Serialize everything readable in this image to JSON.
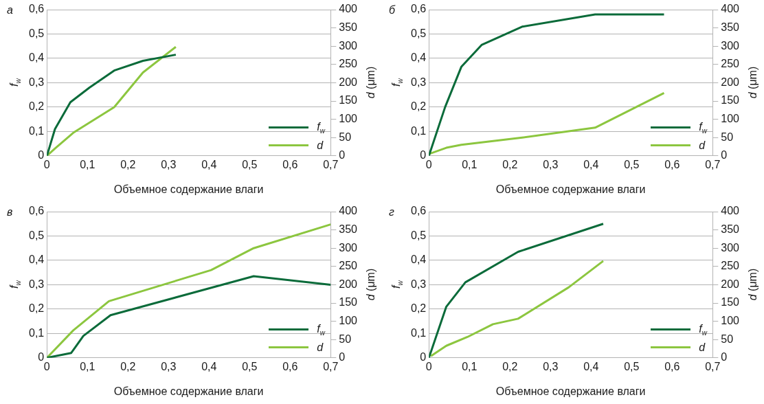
{
  "chart_data": [
    {
      "type": "line",
      "title": "а",
      "xlabel": "Объемное содержание влаги",
      "ylabel": "f$_{w}$",
      "y2label": "d (μm)",
      "grid": "y",
      "legend": "bottom right",
      "xlim": [
        0,
        0.7
      ],
      "xticks": [
        {
          "value": 0,
          "label": "0"
        },
        {
          "value": 0.1,
          "label": "0,1"
        },
        {
          "value": 0.2,
          "label": "0,2"
        },
        {
          "value": 0.3,
          "label": "0,3"
        },
        {
          "value": 0.4,
          "label": "0,4"
        },
        {
          "value": 0.5,
          "label": "0,5"
        },
        {
          "value": 0.6,
          "label": "0,6"
        },
        {
          "value": 0.7,
          "label": "0,7"
        }
      ],
      "ylim": [
        0,
        0.6
      ],
      "yticks": [
        {
          "value": 0,
          "label": "0"
        },
        {
          "value": 0.1,
          "label": "0,1"
        },
        {
          "value": 0.2,
          "label": "0,2"
        },
        {
          "value": 0.3,
          "label": "0,3"
        },
        {
          "value": 0.4,
          "label": "0,4"
        },
        {
          "value": 0.5,
          "label": "0,5"
        },
        {
          "value": 0.6,
          "label": "0,6"
        }
      ],
      "y2lim": [
        0,
        400
      ],
      "y2ticks": [
        0,
        50,
        100,
        150,
        200,
        250,
        300,
        350,
        400
      ],
      "series": [
        {
          "name": "f$_{w}$",
          "color": "#0b6b3a",
          "x": [
            0,
            0.02,
            0.058,
            0.105,
            0.166,
            0.237,
            0.318
          ],
          "values": [
            0,
            0.11,
            0.22,
            0.28,
            0.35,
            0.39,
            0.415
          ]
        },
        {
          "name": "d",
          "color": "#8cc63f",
          "axis": "y2",
          "x": [
            0,
            0.02,
            0.065,
            0.166,
            0.237,
            0.318
          ],
          "values": [
            0,
            20,
            63,
            133,
            228,
            298
          ]
        }
      ]
    },
    {
      "type": "line",
      "title": "б",
      "xlabel": "Объемное содержание влаги",
      "ylabel": "f$_{w}$",
      "y2label": "d (μm)",
      "grid": "y",
      "legend": "bottom right",
      "xlim": [
        0,
        0.7
      ],
      "xticks": [
        {
          "value": 0,
          "label": "0"
        },
        {
          "value": 0.1,
          "label": "0,1"
        },
        {
          "value": 0.2,
          "label": "0,2"
        },
        {
          "value": 0.3,
          "label": "0,3"
        },
        {
          "value": 0.4,
          "label": "0,4"
        },
        {
          "value": 0.5,
          "label": "0,5"
        },
        {
          "value": 0.6,
          "label": "0,6"
        },
        {
          "value": 0.7,
          "label": "0,7"
        }
      ],
      "ylim": [
        0,
        0.6
      ],
      "yticks": [
        {
          "value": 0,
          "label": "0"
        },
        {
          "value": 0.1,
          "label": "0,1"
        },
        {
          "value": 0.2,
          "label": "0,2"
        },
        {
          "value": 0.3,
          "label": "0,3"
        },
        {
          "value": 0.4,
          "label": "0,4"
        },
        {
          "value": 0.5,
          "label": "0,5"
        },
        {
          "value": 0.6,
          "label": "0,6"
        }
      ],
      "y2lim": [
        0,
        400
      ],
      "y2ticks": [
        0,
        50,
        100,
        150,
        200,
        250,
        300,
        350,
        400
      ],
      "series": [
        {
          "name": "f$_{w}$",
          "color": "#0b6b3a",
          "x": [
            0,
            0.04,
            0.08,
            0.13,
            0.23,
            0.41,
            0.58
          ],
          "values": [
            0,
            0.2,
            0.365,
            0.455,
            0.53,
            0.58,
            0.58
          ]
        },
        {
          "name": "d",
          "color": "#8cc63f",
          "axis": "y2",
          "x": [
            0,
            0.043,
            0.08,
            0.23,
            0.41,
            0.58
          ],
          "values": [
            5,
            22,
            30,
            50,
            77,
            172
          ]
        }
      ]
    },
    {
      "type": "line",
      "title": "в",
      "xlabel": "Объемное содержание влаги",
      "ylabel": "f$_{w}$",
      "y2label": "d (μm)",
      "grid": "y",
      "legend": "bottom right",
      "xlim": [
        0,
        0.7
      ],
      "xticks": [
        {
          "value": 0,
          "label": "0"
        },
        {
          "value": 0.1,
          "label": "0,1"
        },
        {
          "value": 0.2,
          "label": "0,2"
        },
        {
          "value": 0.3,
          "label": "0,3"
        },
        {
          "value": 0.4,
          "label": "0,4"
        },
        {
          "value": 0.5,
          "label": "0,5"
        },
        {
          "value": 0.6,
          "label": "0,6"
        },
        {
          "value": 0.7,
          "label": "0,7"
        }
      ],
      "ylim": [
        0,
        0.6
      ],
      "yticks": [
        {
          "value": 0,
          "label": "0"
        },
        {
          "value": 0.1,
          "label": "0,1"
        },
        {
          "value": 0.2,
          "label": "0,2"
        },
        {
          "value": 0.3,
          "label": "0,3"
        },
        {
          "value": 0.4,
          "label": "0,4"
        },
        {
          "value": 0.5,
          "label": "0,5"
        },
        {
          "value": 0.6,
          "label": "0,6"
        }
      ],
      "y2lim": [
        0,
        400
      ],
      "y2ticks": [
        0,
        50,
        100,
        150,
        200,
        250,
        300,
        350,
        400
      ],
      "series": [
        {
          "name": "f$_{w}$",
          "color": "#0b6b3a",
          "x": [
            0,
            0.06,
            0.09,
            0.157,
            0.51,
            0.7
          ],
          "values": [
            0,
            0.02,
            0.09,
            0.175,
            0.335,
            0.3
          ]
        },
        {
          "name": "d",
          "color": "#8cc63f",
          "axis": "y2",
          "x": [
            0,
            0.065,
            0.153,
            0.405,
            0.51,
            0.7
          ],
          "values": [
            0,
            75,
            155,
            240,
            300,
            365
          ]
        }
      ]
    },
    {
      "type": "line",
      "title": "г",
      "xlabel": "Объемное содержание влаги",
      "ylabel": "f$_{w}$",
      "y2label": "d (μm)",
      "grid": "y",
      "legend": "bottom right",
      "xlim": [
        0,
        0.7
      ],
      "xticks": [
        {
          "value": 0,
          "label": "0"
        },
        {
          "value": 0.1,
          "label": "0,1"
        },
        {
          "value": 0.2,
          "label": "0,2"
        },
        {
          "value": 0.3,
          "label": "0,3"
        },
        {
          "value": 0.4,
          "label": "0,4"
        },
        {
          "value": 0.5,
          "label": "0,5"
        },
        {
          "value": 0.6,
          "label": "0,6"
        },
        {
          "value": 0.7,
          "label": "0,7"
        }
      ],
      "ylim": [
        0,
        0.6
      ],
      "yticks": [
        {
          "value": 0,
          "label": "0"
        },
        {
          "value": 0.1,
          "label": "0,1"
        },
        {
          "value": 0.2,
          "label": "0,2"
        },
        {
          "value": 0.3,
          "label": "0,3"
        },
        {
          "value": 0.4,
          "label": "0,4"
        },
        {
          "value": 0.5,
          "label": "0,5"
        },
        {
          "value": 0.6,
          "label": "0,6"
        }
      ],
      "y2lim": [
        0,
        400
      ],
      "y2ticks": [
        0,
        50,
        100,
        150,
        200,
        250,
        300,
        350,
        400
      ],
      "series": [
        {
          "name": "f$_{w}$",
          "color": "#0b6b3a",
          "x": [
            0,
            0.043,
            0.09,
            0.22,
            0.43
          ],
          "values": [
            0,
            0.21,
            0.31,
            0.435,
            0.55
          ]
        },
        {
          "name": "d",
          "color": "#8cc63f",
          "axis": "y2",
          "x": [
            0.005,
            0.043,
            0.095,
            0.158,
            0.22,
            0.345,
            0.43
          ],
          "values": [
            5,
            33,
            57,
            92,
            107,
            193,
            265
          ]
        }
      ]
    }
  ]
}
